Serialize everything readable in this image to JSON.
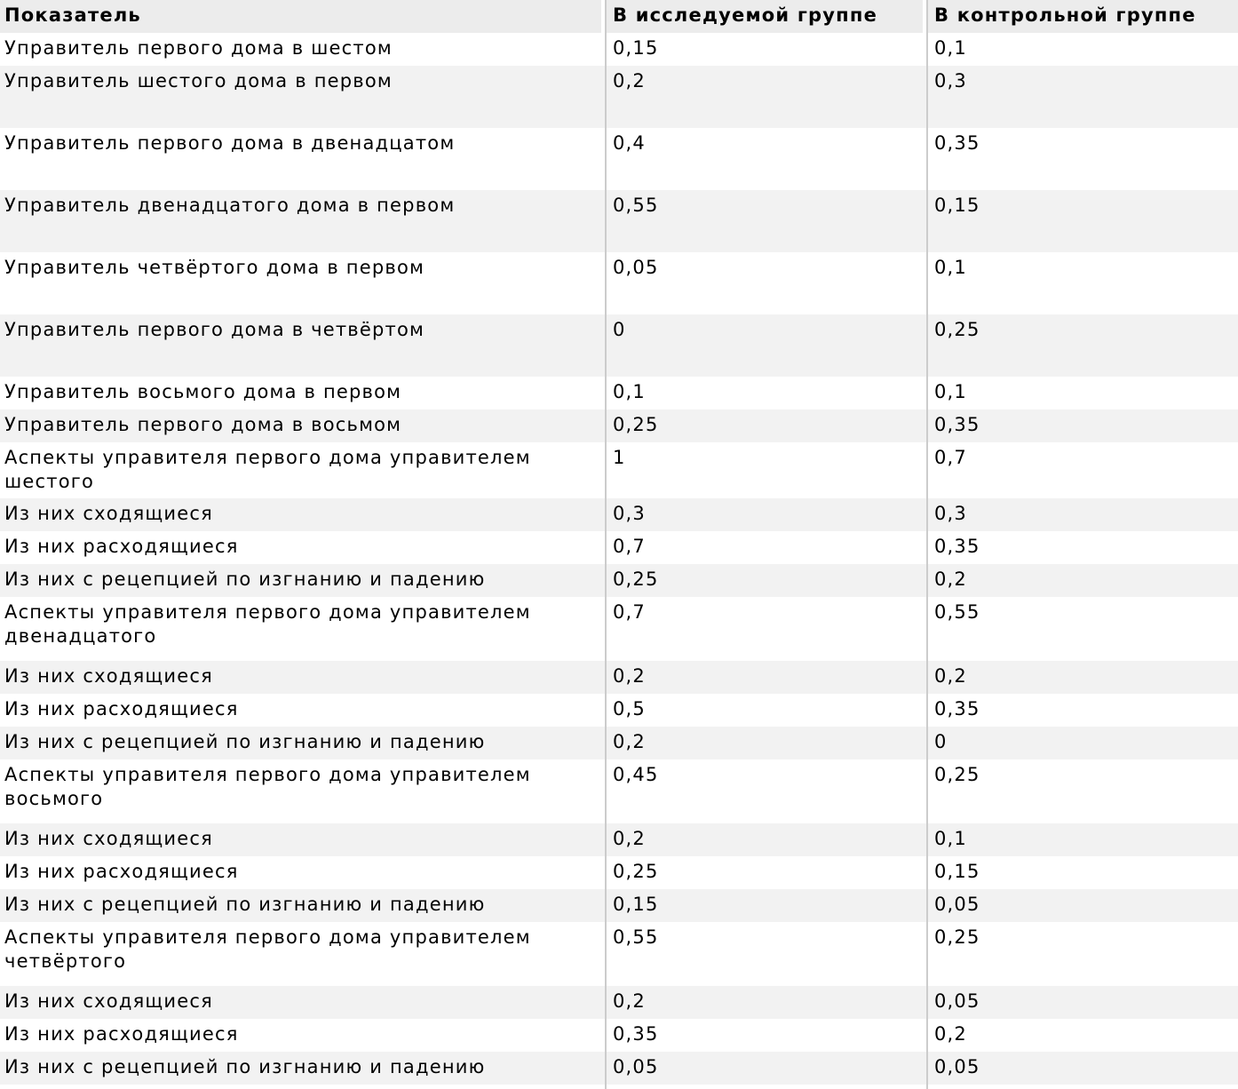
{
  "colors": {
    "header_bg": "#ececec",
    "row_bg": "#ffffff",
    "row_alt_bg": "#f2f2f2",
    "separator_line": "#cccccc",
    "text": "#000000"
  },
  "table": {
    "header": {
      "indicator": "Показатель",
      "study_group": "В исследуемой группе",
      "control_group": "В контрольной группе"
    },
    "rows": [
      {
        "indicator": "Управитель первого дома в шестом",
        "study_group": "0,15",
        "control_group": "0,1"
      },
      {
        "indicator": "Управитель шестого дома в первом",
        "study_group": "0,2",
        "control_group": "0,3"
      },
      {
        "indicator": "Управитель первого дома в двенадцатом",
        "study_group": "0,4",
        "control_group": "0,35"
      },
      {
        "indicator": "Управитель двенадцатого дома в первом",
        "study_group": "0,55",
        "control_group": "0,15"
      },
      {
        "indicator": "Управитель четвёртого дома в первом",
        "study_group": "0,05",
        "control_group": "0,1"
      },
      {
        "indicator": "Управитель первого дома в четвёртом",
        "study_group": "0",
        "control_group": "0,25"
      },
      {
        "indicator": "Управитель восьмого дома в первом",
        "study_group": "0,1",
        "control_group": "0,1"
      },
      {
        "indicator": "Управитель первого дома в восьмом",
        "study_group": "0,25",
        "control_group": "0,35"
      },
      {
        "indicator": "Аспекты управителя первого дома управителем шестого",
        "study_group": "1",
        "control_group": "0,7"
      },
      {
        "indicator": "Из них сходящиеся",
        "study_group": "0,3",
        "control_group": "0,3"
      },
      {
        "indicator": "Из них расходящиеся",
        "study_group": "0,7",
        "control_group": "0,35"
      },
      {
        "indicator": "Из них с рецепцией по изгнанию и падению",
        "study_group": "0,25",
        "control_group": "0,2"
      },
      {
        "indicator": "Аспекты управителя первого дома управителем двенадцатого",
        "study_group": "0,7",
        "control_group": "0,55"
      },
      {
        "indicator": "Из них сходящиеся",
        "study_group": "0,2",
        "control_group": "0,2"
      },
      {
        "indicator": "Из них расходящиеся",
        "study_group": "0,5",
        "control_group": "0,35"
      },
      {
        "indicator": "Из них с рецепцией по изгнанию и падению",
        "study_group": "0,2",
        "control_group": "0"
      },
      {
        "indicator": "Аспекты управителя первого дома управителем восьмого",
        "study_group": "0,45",
        "control_group": "0,25"
      },
      {
        "indicator": "Из них сходящиеся",
        "study_group": "0,2",
        "control_group": "0,1"
      },
      {
        "indicator": "Из них расходящиеся",
        "study_group": "0,25",
        "control_group": "0,15"
      },
      {
        "indicator": "Из них с рецепцией по изгнанию и падению",
        "study_group": "0,15",
        "control_group": "0,05"
      },
      {
        "indicator": "Аспекты управителя первого дома управителем четвёртого",
        "study_group": "0,55",
        "control_group": "0,25"
      },
      {
        "indicator": "Из них сходящиеся",
        "study_group": "0,2",
        "control_group": "0,05"
      },
      {
        "indicator": "Из них расходящиеся",
        "study_group": "0,35",
        "control_group": "0,2"
      },
      {
        "indicator": "Из них с рецепцией по изгнанию и падению",
        "study_group": "0,05",
        "control_group": "0,05"
      }
    ]
  }
}
